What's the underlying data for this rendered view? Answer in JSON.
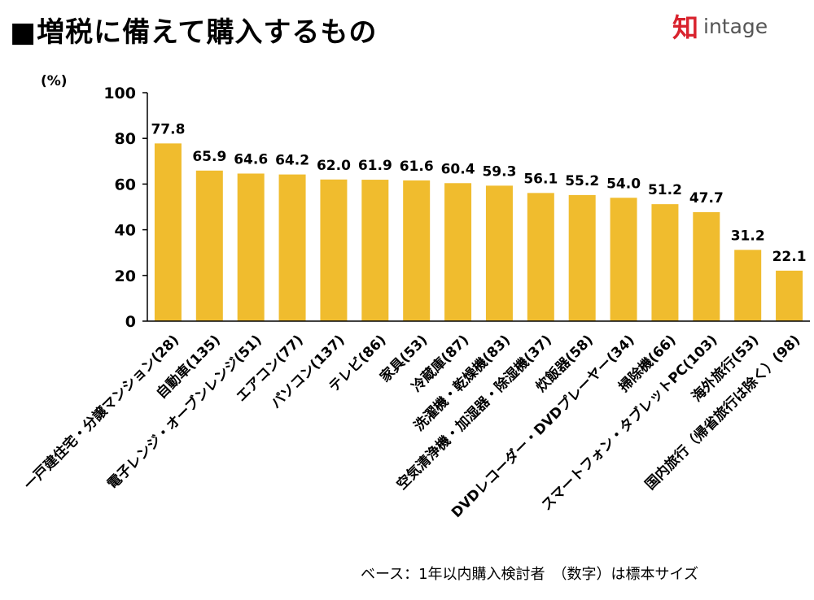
{
  "header": {
    "title": "■増税に備えて購入するもの",
    "logo_text": "intage",
    "logo_mark_char": "知"
  },
  "footnote": "ベース：1年以内購入検討者　（数字）は標本サイズ",
  "colors": {
    "bar": "#F0BC2E",
    "axis": "#000000",
    "logo_mark": "#D9232E",
    "logo_text": "#555555"
  },
  "chart_data": {
    "type": "bar",
    "ylabel": "(%)",
    "ylim": [
      0,
      100
    ],
    "yticks": [
      0,
      20,
      40,
      60,
      80,
      100
    ],
    "grid": false,
    "legend": "none",
    "categories": [
      "一戸建住宅・分譲マンション(28)",
      "自動車(135)",
      "電子レンジ・オーブンレンジ(51)",
      "エアコン(77)",
      "パソコン(137)",
      "テレビ(86)",
      "家具(53)",
      "冷蔵庫(87)",
      "洗濯機・乾燥機(83)",
      "空気清浄機・加湿器・除湿機(37)",
      "炊飯器(58)",
      "DVDレコーダー・DVDプレーヤー(34)",
      "掃除機(66)",
      "スマートフォン・タブレットPC(103)",
      "海外旅行(53)",
      "国内旅行（帰省旅行は除く）(98)"
    ],
    "values": [
      77.8,
      65.9,
      64.6,
      64.2,
      62.0,
      61.9,
      61.6,
      60.4,
      59.3,
      56.1,
      55.2,
      54.0,
      51.2,
      47.7,
      31.2,
      22.1
    ],
    "value_labels": [
      "77.8",
      "65.9",
      "64.6",
      "64.2",
      "62.0",
      "61.9",
      "61.6",
      "60.4",
      "59.3",
      "56.1",
      "55.2",
      "54.0",
      "51.2",
      "47.7",
      "31.2",
      "22.1"
    ]
  }
}
